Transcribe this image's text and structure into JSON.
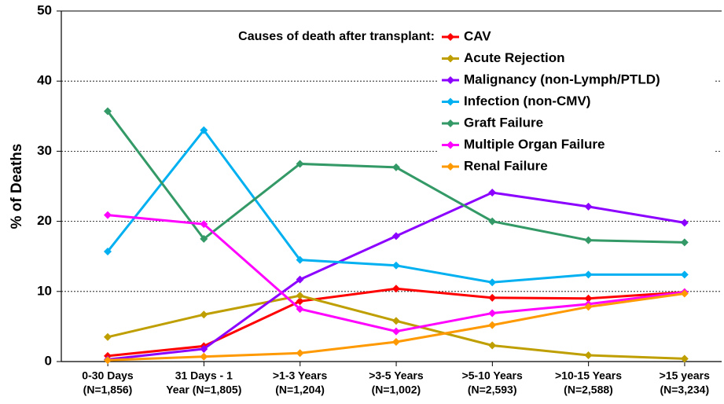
{
  "chart_data": {
    "type": "line",
    "y_label": "% of Deaths",
    "legend_title": "Causes of death after transplant:",
    "categories": [
      [
        "0-30 Days",
        "(N=1,856)"
      ],
      [
        "31 Days - 1",
        "Year (N=1,805)"
      ],
      [
        ">1-3 Years",
        "(N=1,204)"
      ],
      [
        ">3-5 Years",
        "(N=1,002)"
      ],
      [
        ">5-10 Years",
        "(N=2,593)"
      ],
      [
        ">10-15 Years",
        "(N=2,588)"
      ],
      [
        ">15 years",
        "(N=3,234)"
      ]
    ],
    "series": [
      {
        "name": "CAV",
        "color": "#ff0000",
        "values": [
          0.8,
          2.2,
          8.6,
          10.4,
          9.1,
          9.0,
          9.9
        ]
      },
      {
        "name": "Acute Rejection",
        "color": "#bf9f00",
        "values": [
          3.5,
          6.7,
          9.4,
          5.8,
          2.3,
          0.9,
          0.4
        ]
      },
      {
        "name": "Malignancy (non-Lymph/PTLD)",
        "color": "#8b00ff",
        "values": [
          0.3,
          1.8,
          11.7,
          17.9,
          24.1,
          22.1,
          19.8
        ]
      },
      {
        "name": "Infection (non-CMV)",
        "color": "#00b0f0",
        "values": [
          15.7,
          33.0,
          14.5,
          13.7,
          11.3,
          12.4,
          12.4
        ]
      },
      {
        "name": "Graft Failure",
        "color": "#339966",
        "values": [
          35.7,
          17.5,
          28.2,
          27.7,
          20.0,
          17.3,
          17.0
        ]
      },
      {
        "name": "Multiple Organ Failure",
        "color": "#ff00ff",
        "values": [
          20.9,
          19.6,
          7.5,
          4.3,
          6.9,
          8.2,
          9.9
        ]
      },
      {
        "name": "Renal Failure",
        "color": "#ff9900",
        "values": [
          0.2,
          0.7,
          1.2,
          2.8,
          5.2,
          7.8,
          9.7
        ]
      }
    ],
    "ylim": [
      0,
      50
    ],
    "yticks": [
      0,
      10,
      20,
      30,
      40,
      50
    ],
    "grid": true,
    "legend": "upper right"
  }
}
